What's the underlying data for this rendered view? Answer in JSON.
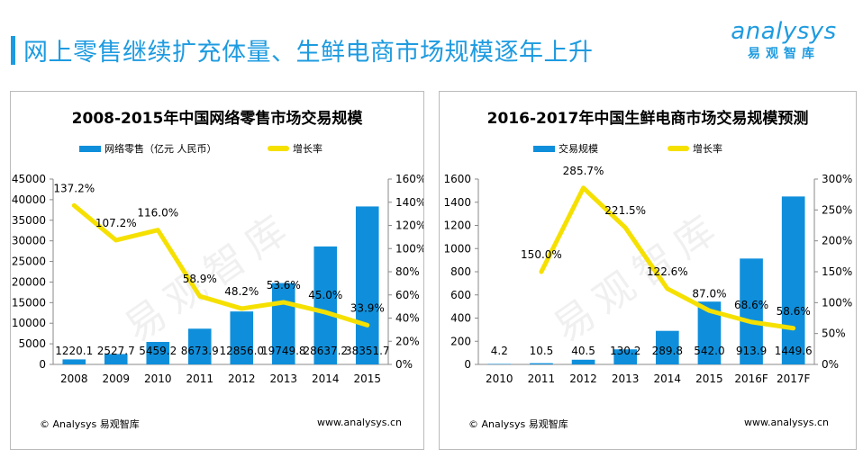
{
  "header": {
    "title": "网上零售继续扩充体量、生鲜电商市场规模逐年上升",
    "logo_word": "nalysys",
    "logo_mark": "a",
    "logo_cn": "易观智库"
  },
  "colors": {
    "bar": "#0f8fdb",
    "line": "#f5e000",
    "accent": "#1e9be0"
  },
  "footer": {
    "copyright": "© Analysys 易观智库",
    "url": "www.analysys.cn",
    "watermark": "易观智库"
  },
  "chart_data": [
    {
      "type": "bar",
      "title": "2008-2015年中国网络零售市场交易规模",
      "categories": [
        "2008",
        "2009",
        "2010",
        "2011",
        "2012",
        "2013",
        "2014",
        "2015"
      ],
      "series": [
        {
          "name": "网络零售（亿元 人民币）",
          "type": "bar",
          "axis": "left",
          "values": [
            1220.1,
            2527.7,
            5459.2,
            8673.9,
            12856.0,
            19749.8,
            28637.2,
            38351.7
          ],
          "labels": [
            "1220.1",
            "2527.7",
            "5459.2",
            "8673.9",
            "12856.0",
            "19749.8",
            "28637.2",
            "38351.7"
          ]
        },
        {
          "name": "增长率",
          "type": "line",
          "axis": "right",
          "values": [
            137.2,
            107.2,
            116.0,
            58.9,
            48.2,
            53.6,
            45.0,
            33.9
          ],
          "labels": [
            "137.2%",
            "107.2%",
            "116.0%",
            "58.9%",
            "48.2%",
            "53.6%",
            "45.0%",
            "33.9%"
          ]
        }
      ],
      "ylim_left": [
        0,
        45000
      ],
      "yticks_left": [
        "0",
        "5000",
        "10000",
        "15000",
        "20000",
        "25000",
        "30000",
        "35000",
        "40000",
        "45000"
      ],
      "ylim_right": [
        0,
        160
      ],
      "yticks_right": [
        "0%",
        "20%",
        "40%",
        "60%",
        "80%",
        "100%",
        "120%",
        "140%",
        "160%"
      ],
      "legend": "top",
      "grid": false
    },
    {
      "type": "bar",
      "title": "2016-2017年中国生鲜电商市场交易规模预测",
      "categories": [
        "2010",
        "2011",
        "2012",
        "2013",
        "2014",
        "2015",
        "2016F",
        "2017F"
      ],
      "series": [
        {
          "name": "交易规模",
          "type": "bar",
          "axis": "left",
          "values": [
            4.2,
            10.5,
            40.5,
            130.2,
            289.8,
            542.0,
            913.9,
            1449.6
          ],
          "labels": [
            "4.2",
            "10.5",
            "40.5",
            "130.2",
            "289.8",
            "542.0",
            "913.9",
            "1449.6"
          ]
        },
        {
          "name": "增长率",
          "type": "line",
          "axis": "right",
          "values": [
            null,
            150.0,
            285.7,
            221.5,
            122.6,
            87.0,
            68.6,
            58.6
          ],
          "labels": [
            "",
            "150.0%",
            "285.7%",
            "221.5%",
            "122.6%",
            "87.0%",
            "68.6%",
            "58.6%"
          ]
        }
      ],
      "ylim_left": [
        0,
        1600
      ],
      "yticks_left": [
        "0",
        "200",
        "400",
        "600",
        "800",
        "1000",
        "1200",
        "1400",
        "1600"
      ],
      "ylim_right": [
        0,
        300
      ],
      "yticks_right": [
        "0%",
        "50%",
        "100%",
        "150%",
        "200%",
        "250%",
        "300%"
      ],
      "legend": "top",
      "grid": false
    }
  ]
}
